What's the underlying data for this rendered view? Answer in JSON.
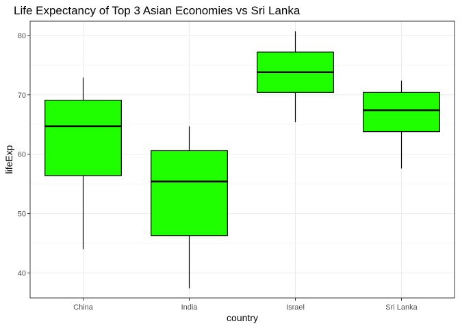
{
  "chart_data": {
    "type": "boxplot",
    "title": "Life Expectancy of Top 3 Asian Economies vs Sri Lanka",
    "xlabel": "country",
    "ylabel": "lifeExp",
    "ylim": [
      35.8,
      82.4
    ],
    "yticks": [
      40,
      50,
      60,
      70,
      80
    ],
    "grid": true,
    "colors": {
      "box_fill": "#1fff00",
      "box_stroke": "#000000",
      "panel_border": "#333333",
      "grid_major": "#ebebeb",
      "grid_minor": "#f5f5f5",
      "tick_color": "#333333"
    },
    "categories": [
      "China",
      "India",
      "Israel",
      "Sri Lanka"
    ],
    "boxes": [
      {
        "category": "China",
        "whisker_low": 44.0,
        "q1": 56.4,
        "median": 64.7,
        "q3": 69.1,
        "whisker_high": 72.9
      },
      {
        "category": "India",
        "whisker_low": 37.4,
        "q1": 46.3,
        "median": 55.4,
        "q3": 60.6,
        "whisker_high": 64.7
      },
      {
        "category": "Israel",
        "whisker_low": 65.4,
        "q1": 70.4,
        "median": 73.8,
        "q3": 77.2,
        "whisker_high": 80.7
      },
      {
        "category": "Sri Lanka",
        "whisker_low": 57.6,
        "q1": 63.8,
        "median": 67.4,
        "q3": 70.4,
        "whisker_high": 72.4
      }
    ]
  }
}
